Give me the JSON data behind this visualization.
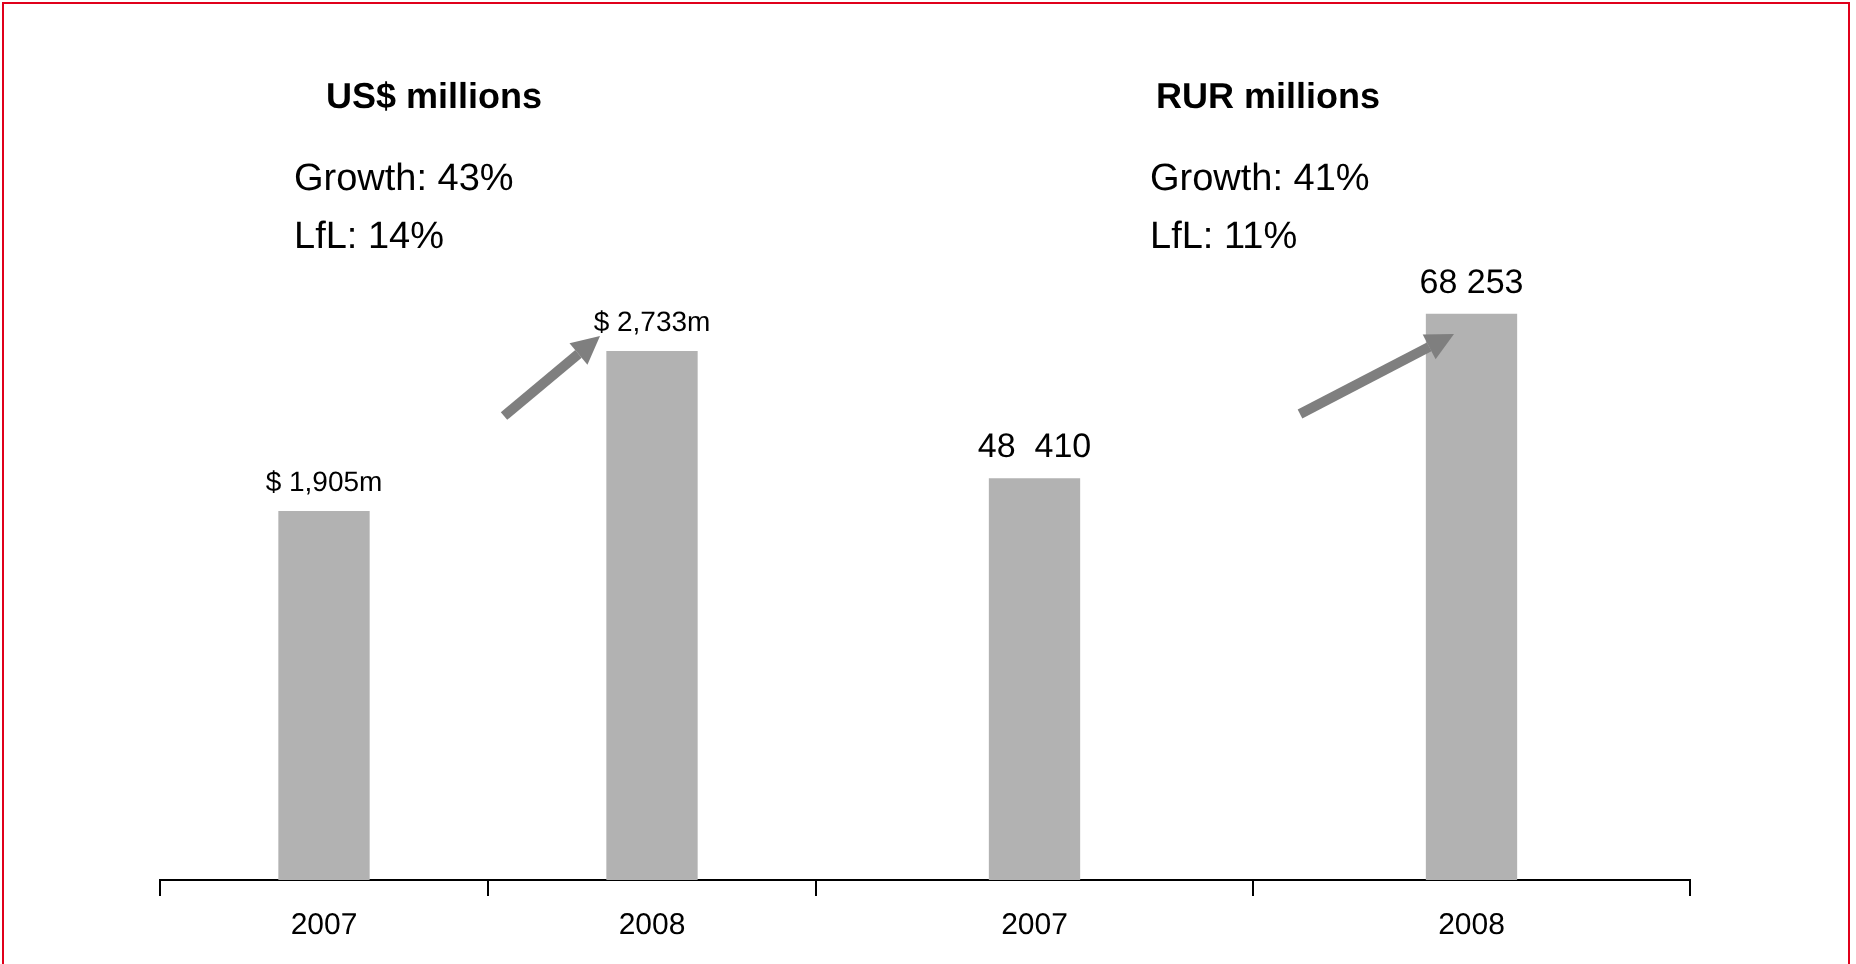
{
  "chart_data": [
    {
      "type": "bar",
      "title": "US$ millions",
      "annotations": [
        "Growth: 43%",
        "LfL: 14%"
      ],
      "categories": [
        "2007",
        "2008"
      ],
      "values": [
        1905,
        2733
      ],
      "value_labels": [
        "$ 1,905m",
        "$ 2,733m"
      ],
      "color": "#b2b2b2",
      "grid": false,
      "legend": false
    },
    {
      "type": "bar",
      "title": "RUR millions",
      "annotations": [
        "Growth: 41%",
        "LfL: 11%"
      ],
      "categories": [
        "2007",
        "2008"
      ],
      "values": [
        48410,
        68253
      ],
      "value_labels": [
        "48  410",
        "68 253"
      ],
      "color": "#b2b2b2",
      "grid": false,
      "legend": false
    }
  ]
}
